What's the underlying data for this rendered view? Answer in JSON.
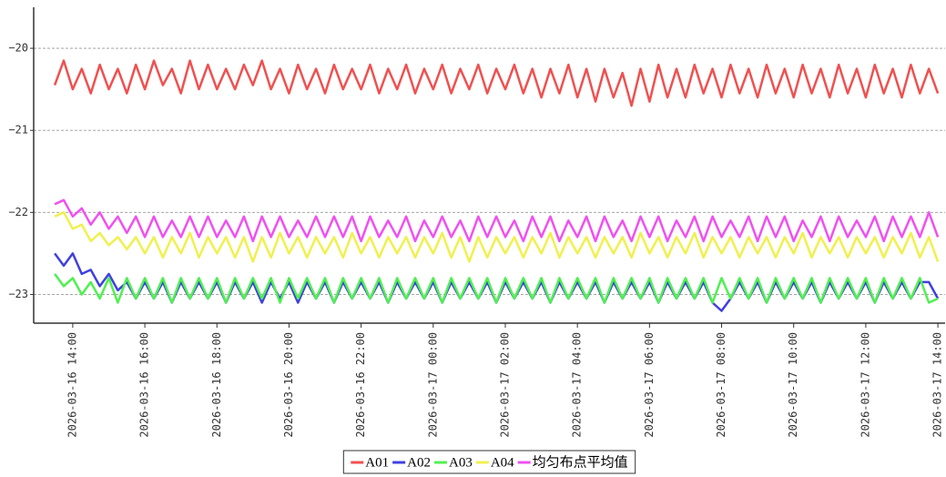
{
  "chart_data": {
    "type": "line",
    "x": [
      "2026-03-16 13:30",
      "2026-03-16 13:45",
      "2026-03-16 14:00",
      "2026-03-16 14:15",
      "2026-03-16 14:30",
      "2026-03-16 14:45",
      "2026-03-16 15:00",
      "2026-03-16 15:15",
      "2026-03-16 15:30",
      "2026-03-16 15:45",
      "2026-03-16 16:00",
      "2026-03-16 16:15",
      "2026-03-16 16:30",
      "2026-03-16 16:45",
      "2026-03-16 17:00",
      "2026-03-16 17:15",
      "2026-03-16 17:30",
      "2026-03-16 17:45",
      "2026-03-16 18:00",
      "2026-03-16 18:15",
      "2026-03-16 18:30",
      "2026-03-16 18:45",
      "2026-03-16 19:00",
      "2026-03-16 19:15",
      "2026-03-16 19:30",
      "2026-03-16 19:45",
      "2026-03-16 20:00",
      "2026-03-16 20:15",
      "2026-03-16 20:30",
      "2026-03-16 20:45",
      "2026-03-16 21:00",
      "2026-03-16 21:15",
      "2026-03-16 21:30",
      "2026-03-16 21:45",
      "2026-03-16 22:00",
      "2026-03-16 22:15",
      "2026-03-16 22:30",
      "2026-03-16 22:45",
      "2026-03-16 23:00",
      "2026-03-16 23:15",
      "2026-03-16 23:30",
      "2026-03-16 23:45",
      "2026-03-17 00:00",
      "2026-03-17 00:15",
      "2026-03-17 00:30",
      "2026-03-17 00:45",
      "2026-03-17 01:00",
      "2026-03-17 01:15",
      "2026-03-17 01:30",
      "2026-03-17 01:45",
      "2026-03-17 02:00",
      "2026-03-17 02:15",
      "2026-03-17 02:30",
      "2026-03-17 02:45",
      "2026-03-17 03:00",
      "2026-03-17 03:15",
      "2026-03-17 03:30",
      "2026-03-17 03:45",
      "2026-03-17 04:00",
      "2026-03-17 04:15",
      "2026-03-17 04:30",
      "2026-03-17 04:45",
      "2026-03-17 05:00",
      "2026-03-17 05:15",
      "2026-03-17 05:30",
      "2026-03-17 05:45",
      "2026-03-17 06:00",
      "2026-03-17 06:15",
      "2026-03-17 06:30",
      "2026-03-17 06:45",
      "2026-03-17 07:00",
      "2026-03-17 07:15",
      "2026-03-17 07:30",
      "2026-03-17 07:45",
      "2026-03-17 08:00",
      "2026-03-17 08:15",
      "2026-03-17 08:30",
      "2026-03-17 08:45",
      "2026-03-17 09:00",
      "2026-03-17 09:15",
      "2026-03-17 09:30",
      "2026-03-17 09:45",
      "2026-03-17 10:00",
      "2026-03-17 10:15",
      "2026-03-17 10:30",
      "2026-03-17 10:45",
      "2026-03-17 11:00",
      "2026-03-17 11:15",
      "2026-03-17 11:30",
      "2026-03-17 11:45",
      "2026-03-17 12:00",
      "2026-03-17 12:15",
      "2026-03-17 12:30",
      "2026-03-17 12:45",
      "2026-03-17 13:00",
      "2026-03-17 13:15",
      "2026-03-17 13:30",
      "2026-03-17 13:45",
      "2026-03-17 14:00"
    ],
    "series": [
      {
        "name": "A01",
        "color": "#f05050",
        "values": [
          -20.45,
          -20.15,
          -20.5,
          -20.25,
          -20.55,
          -20.2,
          -20.5,
          -20.25,
          -20.55,
          -20.2,
          -20.5,
          -20.15,
          -20.45,
          -20.25,
          -20.55,
          -20.15,
          -20.5,
          -20.2,
          -20.5,
          -20.25,
          -20.5,
          -20.2,
          -20.45,
          -20.15,
          -20.5,
          -20.25,
          -20.55,
          -20.2,
          -20.5,
          -20.25,
          -20.55,
          -20.2,
          -20.5,
          -20.25,
          -20.5,
          -20.2,
          -20.55,
          -20.25,
          -20.5,
          -20.2,
          -20.55,
          -20.25,
          -20.5,
          -20.2,
          -20.55,
          -20.25,
          -20.5,
          -20.2,
          -20.55,
          -20.25,
          -20.5,
          -20.2,
          -20.55,
          -20.25,
          -20.6,
          -20.25,
          -20.55,
          -20.2,
          -20.6,
          -20.25,
          -20.65,
          -20.25,
          -20.6,
          -20.3,
          -20.7,
          -20.25,
          -20.65,
          -20.2,
          -20.6,
          -20.25,
          -20.6,
          -20.2,
          -20.55,
          -20.25,
          -20.6,
          -20.2,
          -20.55,
          -20.25,
          -20.6,
          -20.2,
          -20.55,
          -20.25,
          -20.6,
          -20.2,
          -20.55,
          -20.25,
          -20.6,
          -20.2,
          -20.55,
          -20.25,
          -20.6,
          -20.2,
          -20.55,
          -20.25,
          -20.6,
          -20.2,
          -20.55,
          -20.25,
          -20.55
        ]
      },
      {
        "name": "A02",
        "color": "#4040e0",
        "values": [
          -22.5,
          -22.65,
          -22.5,
          -22.75,
          -22.7,
          -22.9,
          -22.75,
          -22.95,
          -22.85,
          -23.05,
          -22.85,
          -23.05,
          -22.85,
          -23.1,
          -22.85,
          -23.05,
          -22.85,
          -23.05,
          -22.85,
          -23.1,
          -22.85,
          -23.05,
          -22.85,
          -23.1,
          -22.85,
          -23.05,
          -22.85,
          -23.1,
          -22.85,
          -23.05,
          -22.85,
          -23.1,
          -22.85,
          -23.05,
          -22.85,
          -23.05,
          -22.85,
          -23.1,
          -22.85,
          -23.05,
          -22.85,
          -23.05,
          -22.85,
          -23.1,
          -22.85,
          -23.05,
          -22.85,
          -23.05,
          -22.85,
          -23.1,
          -22.85,
          -23.05,
          -22.85,
          -23.05,
          -22.85,
          -23.1,
          -22.85,
          -23.05,
          -22.85,
          -23.05,
          -22.85,
          -23.1,
          -22.85,
          -23.05,
          -22.85,
          -23.05,
          -22.85,
          -23.1,
          -22.85,
          -23.05,
          -22.85,
          -23.05,
          -22.85,
          -23.1,
          -23.2,
          -23.05,
          -22.85,
          -23.05,
          -22.85,
          -23.1,
          -22.85,
          -23.05,
          -22.85,
          -23.05,
          -22.85,
          -23.1,
          -22.85,
          -23.05,
          -22.85,
          -23.05,
          -22.85,
          -23.1,
          -22.85,
          -23.05,
          -22.85,
          -23.05,
          -22.85,
          -22.85,
          -23.05
        ]
      },
      {
        "name": "A03",
        "color": "#50f050",
        "values": [
          -22.75,
          -22.9,
          -22.8,
          -23.0,
          -22.85,
          -23.05,
          -22.8,
          -23.1,
          -22.8,
          -23.05,
          -22.8,
          -23.05,
          -22.8,
          -23.1,
          -22.8,
          -23.05,
          -22.8,
          -23.05,
          -22.8,
          -23.1,
          -22.8,
          -23.05,
          -22.8,
          -23.05,
          -22.8,
          -23.1,
          -22.8,
          -23.05,
          -22.8,
          -23.05,
          -22.8,
          -23.1,
          -22.8,
          -23.05,
          -22.8,
          -23.05,
          -22.8,
          -23.1,
          -22.8,
          -23.05,
          -22.8,
          -23.05,
          -22.8,
          -23.1,
          -22.8,
          -23.05,
          -22.8,
          -23.05,
          -22.8,
          -23.1,
          -22.8,
          -23.05,
          -22.8,
          -23.05,
          -22.8,
          -23.1,
          -22.8,
          -23.05,
          -22.8,
          -23.05,
          -22.8,
          -23.1,
          -22.8,
          -23.05,
          -22.8,
          -23.05,
          -22.8,
          -23.1,
          -22.8,
          -23.05,
          -22.8,
          -23.05,
          -22.8,
          -23.1,
          -22.8,
          -23.05,
          -22.8,
          -23.05,
          -22.8,
          -23.1,
          -22.8,
          -23.05,
          -22.8,
          -23.05,
          -22.8,
          -23.1,
          -22.8,
          -23.05,
          -22.8,
          -23.05,
          -22.8,
          -23.1,
          -22.8,
          -23.05,
          -22.8,
          -23.05,
          -22.8,
          -23.1,
          -23.05
        ]
      },
      {
        "name": "A04",
        "color": "#f0f050",
        "values": [
          -22.05,
          -22.0,
          -22.2,
          -22.15,
          -22.35,
          -22.25,
          -22.4,
          -22.3,
          -22.45,
          -22.3,
          -22.5,
          -22.3,
          -22.55,
          -22.3,
          -22.5,
          -22.25,
          -22.55,
          -22.3,
          -22.5,
          -22.3,
          -22.55,
          -22.3,
          -22.6,
          -22.3,
          -22.55,
          -22.25,
          -22.5,
          -22.3,
          -22.55,
          -22.3,
          -22.5,
          -22.3,
          -22.55,
          -22.25,
          -22.5,
          -22.3,
          -22.55,
          -22.3,
          -22.5,
          -22.3,
          -22.55,
          -22.3,
          -22.5,
          -22.25,
          -22.55,
          -22.3,
          -22.6,
          -22.3,
          -22.55,
          -22.3,
          -22.5,
          -22.3,
          -22.55,
          -22.3,
          -22.5,
          -22.25,
          -22.55,
          -22.3,
          -22.5,
          -22.3,
          -22.55,
          -22.3,
          -22.5,
          -22.3,
          -22.55,
          -22.25,
          -22.5,
          -22.3,
          -22.55,
          -22.3,
          -22.5,
          -22.25,
          -22.55,
          -22.3,
          -22.5,
          -22.3,
          -22.55,
          -22.3,
          -22.5,
          -22.3,
          -22.55,
          -22.3,
          -22.5,
          -22.25,
          -22.55,
          -22.3,
          -22.5,
          -22.3,
          -22.55,
          -22.3,
          -22.5,
          -22.3,
          -22.55,
          -22.3,
          -22.5,
          -22.25,
          -22.55,
          -22.3,
          -22.6
        ]
      },
      {
        "name": "均匀布点平均值",
        "color": "#f050f0",
        "values": [
          -21.9,
          -21.85,
          -22.05,
          -21.95,
          -22.15,
          -22.0,
          -22.2,
          -22.05,
          -22.25,
          -22.05,
          -22.3,
          -22.05,
          -22.3,
          -22.1,
          -22.3,
          -22.05,
          -22.3,
          -22.05,
          -22.3,
          -22.1,
          -22.3,
          -22.05,
          -22.35,
          -22.05,
          -22.3,
          -22.05,
          -22.3,
          -22.1,
          -22.3,
          -22.05,
          -22.3,
          -22.05,
          -22.3,
          -22.05,
          -22.35,
          -22.05,
          -22.3,
          -22.1,
          -22.3,
          -22.05,
          -22.35,
          -22.1,
          -22.3,
          -22.05,
          -22.3,
          -22.1,
          -22.35,
          -22.05,
          -22.3,
          -22.05,
          -22.3,
          -22.1,
          -22.35,
          -22.05,
          -22.3,
          -22.05,
          -22.35,
          -22.1,
          -22.3,
          -22.05,
          -22.35,
          -22.05,
          -22.3,
          -22.1,
          -22.35,
          -22.05,
          -22.3,
          -22.05,
          -22.35,
          -22.1,
          -22.3,
          -22.05,
          -22.35,
          -22.05,
          -22.3,
          -22.1,
          -22.3,
          -22.05,
          -22.35,
          -22.05,
          -22.3,
          -22.05,
          -22.35,
          -22.1,
          -22.3,
          -22.05,
          -22.35,
          -22.05,
          -22.3,
          -22.1,
          -22.3,
          -22.05,
          -22.35,
          -22.05,
          -22.3,
          -22.05,
          -22.3,
          -22.0,
          -22.3
        ]
      }
    ],
    "xlim": [
      "2026-03-16 12:55",
      "2026-03-17 14:12"
    ],
    "xticks": [
      "2026-03-16 14:00",
      "2026-03-16 16:00",
      "2026-03-16 18:00",
      "2026-03-16 20:00",
      "2026-03-16 22:00",
      "2026-03-17 00:00",
      "2026-03-17 02:00",
      "2026-03-17 04:00",
      "2026-03-17 06:00",
      "2026-03-17 08:00",
      "2026-03-17 10:00",
      "2026-03-17 12:00",
      "2026-03-17 14:00"
    ],
    "ylim": [
      -23.35,
      -19.5
    ],
    "yticks": [
      {
        "value": -23,
        "label": "−23"
      },
      {
        "value": -22,
        "label": "−22"
      },
      {
        "value": -21,
        "label": "−21"
      },
      {
        "value": -20,
        "label": "−20"
      }
    ],
    "grid": true,
    "legend": "bottom"
  }
}
